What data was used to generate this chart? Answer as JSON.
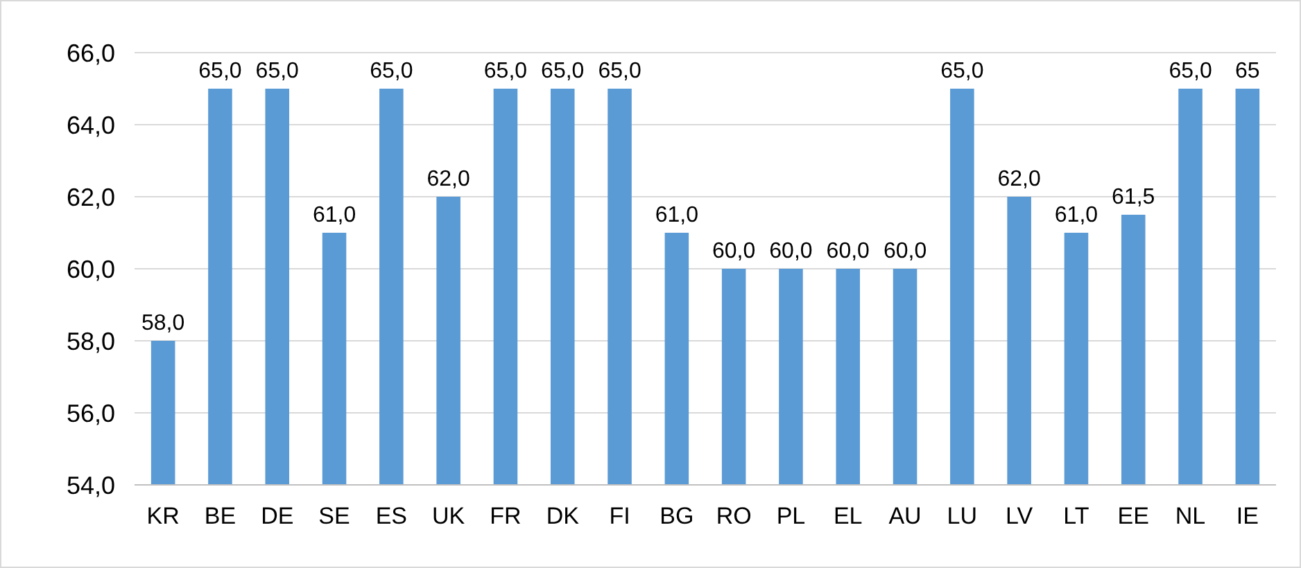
{
  "chart_data": {
    "type": "bar",
    "categories": [
      "KR",
      "BE",
      "DE",
      "SE",
      "ES",
      "UK",
      "FR",
      "DK",
      "FI",
      "BG",
      "RO",
      "PL",
      "EL",
      "AU",
      "LU",
      "LV",
      "LT",
      "EE",
      "NL",
      "IE"
    ],
    "values": [
      58,
      65,
      65,
      61,
      65,
      62,
      65,
      65,
      65,
      61,
      60,
      60,
      60,
      60,
      65,
      62,
      61,
      61.5,
      65,
      65
    ],
    "value_labels": [
      "58,0",
      "65,0",
      "65,0",
      "61,0",
      "65,0",
      "62,0",
      "65,0",
      "65,0",
      "65,0",
      "61,0",
      "60,0",
      "60,0",
      "60,0",
      "60,0",
      "65,0",
      "62,0",
      "61,0",
      "61,5",
      "65,0",
      "65"
    ],
    "color": "#5b9bd5",
    "ylim": [
      54,
      66
    ],
    "yticks": [
      {
        "value": 54,
        "label": "54,0"
      },
      {
        "value": 56,
        "label": "56,0"
      },
      {
        "value": 58,
        "label": "58,0"
      },
      {
        "value": 60,
        "label": "60,0"
      },
      {
        "value": 62,
        "label": "62,0"
      },
      {
        "value": 64,
        "label": "64,0"
      },
      {
        "value": 66,
        "label": "66,0"
      }
    ],
    "grid": "y"
  }
}
